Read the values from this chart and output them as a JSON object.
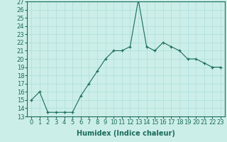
{
  "x": [
    0,
    1,
    2,
    3,
    4,
    5,
    6,
    7,
    8,
    9,
    10,
    11,
    12,
    13,
    14,
    15,
    16,
    17,
    18,
    19,
    20,
    21,
    22,
    23
  ],
  "y": [
    15,
    16,
    13.5,
    13.5,
    13.5,
    13.5,
    15.5,
    17,
    18.5,
    20,
    21,
    21,
    21.5,
    27.2,
    21.5,
    21,
    22,
    21.5,
    21,
    20,
    20,
    19.5,
    19,
    19
  ],
  "xlabel": "Humidex (Indice chaleur)",
  "ylim": [
    13,
    27
  ],
  "xlim": [
    -0.5,
    23.5
  ],
  "yticks": [
    13,
    14,
    15,
    16,
    17,
    18,
    19,
    20,
    21,
    22,
    23,
    24,
    25,
    26,
    27
  ],
  "xticks": [
    0,
    1,
    2,
    3,
    4,
    5,
    6,
    7,
    8,
    9,
    10,
    11,
    12,
    13,
    14,
    15,
    16,
    17,
    18,
    19,
    20,
    21,
    22,
    23
  ],
  "xtick_labels": [
    "0",
    "1",
    "2",
    "3",
    "4",
    "5",
    "6",
    "7",
    "8",
    "9",
    "10",
    "11",
    "12",
    "13",
    "14",
    "15",
    "16",
    "17",
    "18",
    "19",
    "20",
    "21",
    "22",
    "23"
  ],
  "line_color": "#1a6b5a",
  "bg_color": "#cceee8",
  "grid_color": "#aadddd",
  "label_fontsize": 7,
  "tick_fontsize": 6
}
